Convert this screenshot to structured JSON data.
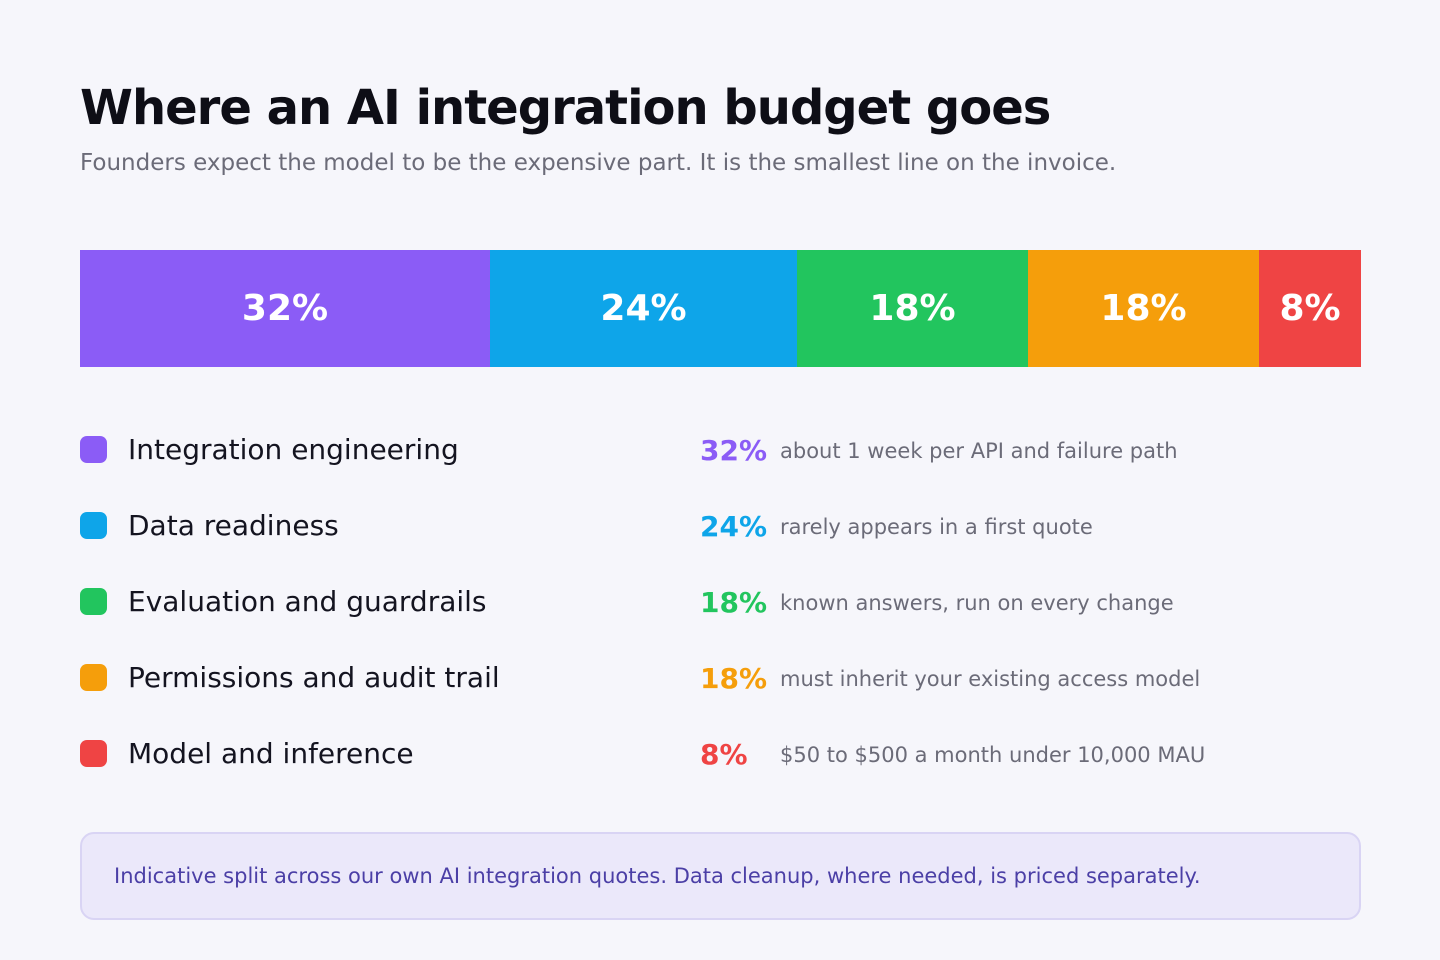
{
  "title": "Where an AI integration budget goes",
  "subtitle": "Founders expect the model to be the expensive part. It is the smallest line on the invoice.",
  "chart_data": {
    "type": "bar",
    "orientation": "horizontal-stacked-100",
    "title": "Where an AI integration budget goes",
    "subtitle": "Founders expect the model to be the expensive part. It is the smallest line on the invoice.",
    "unit": "%",
    "total": 100,
    "grid": false,
    "legend_position": "below",
    "series": [
      {
        "name": "Integration engineering",
        "value": 32,
        "label": "32%",
        "note": "about 1 week per API and failure path",
        "color": "#8b5cf6"
      },
      {
        "name": "Data readiness",
        "value": 24,
        "label": "24%",
        "note": "rarely appears in a first quote",
        "color": "#0ea5e9"
      },
      {
        "name": "Evaluation and guardrails",
        "value": 18,
        "label": "18%",
        "note": "known answers, run on every change",
        "color": "#22c55e"
      },
      {
        "name": "Permissions and audit trail",
        "value": 18,
        "label": "18%",
        "note": "must inherit your existing access model",
        "color": "#f59e0b"
      },
      {
        "name": "Model and inference",
        "value": 8,
        "label": "8%",
        "note": "$50 to $500 a month under 10,000 MAU",
        "color": "#ef4444"
      }
    ]
  },
  "footnote": "Indicative split across our own AI integration quotes. Data cleanup, where needed, is priced separately."
}
